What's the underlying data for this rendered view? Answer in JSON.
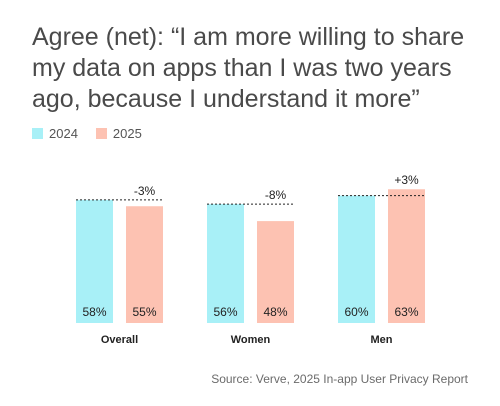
{
  "title": "Agree (net): “I am more willing to share my data on apps than I was two years ago, because I understand it more”",
  "source": "Source: Verve, 2025 In-app User Privacy Report",
  "colors": {
    "2024": "#a8f0f7",
    "2025": "#fdc2b2",
    "text": "#222222"
  },
  "chart_data": {
    "type": "bar",
    "categories": [
      "Overall",
      "Women",
      "Men"
    ],
    "series": [
      {
        "name": "2024",
        "values": [
          58,
          56,
          60
        ]
      },
      {
        "name": "2025",
        "values": [
          55,
          48,
          63
        ]
      }
    ],
    "value_labels": [
      [
        "58%",
        "55%"
      ],
      [
        "56%",
        "48%"
      ],
      [
        "60%",
        "63%"
      ]
    ],
    "change_labels": [
      "-3%",
      "-8%",
      "+3%"
    ],
    "ylim": [
      0,
      65
    ],
    "legend": "top-left",
    "grid": false
  }
}
